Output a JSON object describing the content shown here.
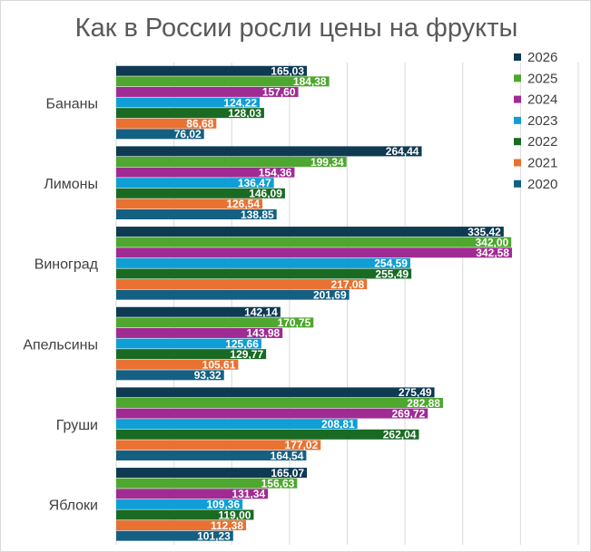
{
  "chart_data": {
    "type": "bar",
    "orientation": "horizontal",
    "title": "Как в России росли цены на фрукты",
    "xlabel": "",
    "ylabel": "",
    "xlim": [
      0,
      400
    ],
    "grid": true,
    "legend_position": "right",
    "categories": [
      "Бананы",
      "Лимоны",
      "Виноград",
      "Апельсины",
      "Груши",
      "Яблоки"
    ],
    "series": [
      {
        "name": "2026",
        "color": "#0e3a52",
        "values": [
          165.03,
          264.44,
          335.42,
          142.14,
          275.49,
          165.07
        ]
      },
      {
        "name": "2025",
        "color": "#4ea72e",
        "values": [
          184.38,
          199.34,
          342.0,
          170.75,
          282.88,
          156.63
        ]
      },
      {
        "name": "2024",
        "color": "#a02b93",
        "values": [
          157.6,
          154.36,
          342.58,
          143.98,
          269.72,
          131.34
        ]
      },
      {
        "name": "2023",
        "color": "#0f9ed5",
        "values": [
          124.22,
          136.47,
          254.59,
          125.66,
          208.81,
          109.36
        ]
      },
      {
        "name": "2022",
        "color": "#196b24",
        "values": [
          128.03,
          146.09,
          255.49,
          129.77,
          262.04,
          119.0
        ]
      },
      {
        "name": "2021",
        "color": "#e97132",
        "values": [
          86.68,
          126.54,
          217.08,
          105.61,
          177.02,
          112.38
        ]
      },
      {
        "name": "2020",
        "color": "#156082",
        "values": [
          76.02,
          138.85,
          201.69,
          93.32,
          164.54,
          101.23
        ]
      }
    ]
  }
}
